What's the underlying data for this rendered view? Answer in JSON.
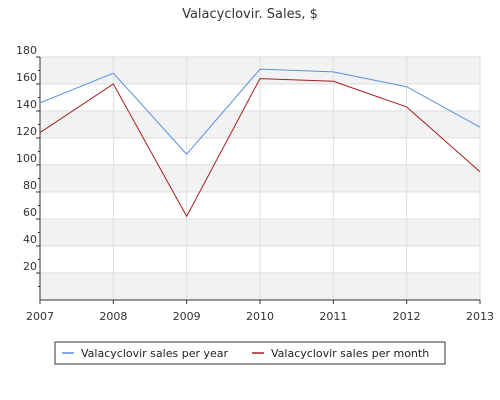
{
  "chart_data": {
    "type": "line",
    "title": "Valacyclovir. Sales, $",
    "x": [
      "2007",
      "2008",
      "2009",
      "2010",
      "2011",
      "2012",
      "2013"
    ],
    "ylim": [
      0,
      180
    ],
    "yticks": [
      20,
      40,
      60,
      80,
      100,
      120,
      140,
      160,
      180
    ],
    "grid": true,
    "legend_position": "bottom",
    "series": [
      {
        "name": "Valacyclovir sales per year",
        "color": "#5b8fe0",
        "values": [
          146,
          168,
          108,
          171,
          169,
          158,
          128
        ]
      },
      {
        "name": "Valacyclovir sales per month",
        "color": "#a52020",
        "values": [
          124,
          160,
          62,
          164,
          162,
          143,
          95
        ]
      }
    ]
  }
}
